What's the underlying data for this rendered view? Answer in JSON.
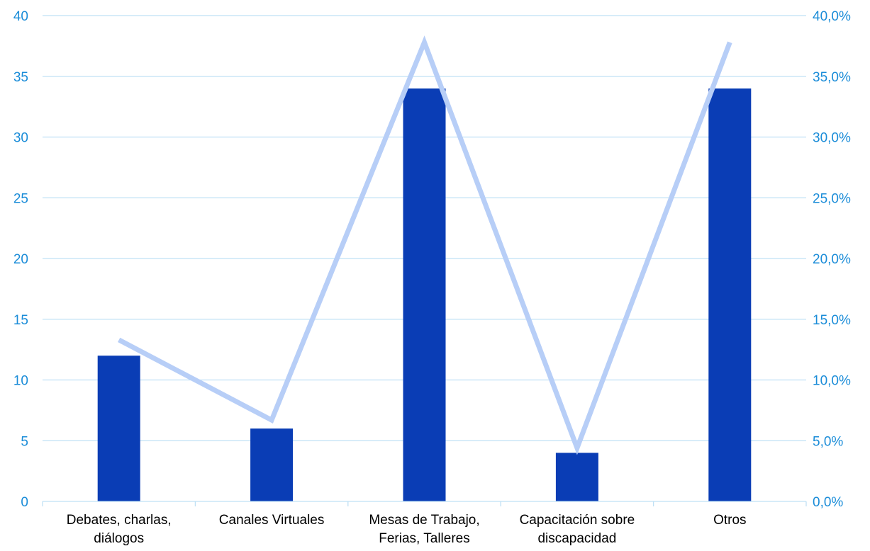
{
  "chart_data": {
    "type": "bar",
    "categories": [
      [
        "Debates, charlas,",
        "diálogos"
      ],
      [
        "Canales Virtuales"
      ],
      [
        "Mesas de Trabajo,",
        "Ferias, Talleres"
      ],
      [
        "Capacitación sobre",
        "discapacidad"
      ],
      [
        "Otros"
      ]
    ],
    "series": [
      {
        "type": "bar",
        "axis": "left",
        "color": "#0a3db5",
        "values": [
          12,
          6,
          34,
          4,
          34
        ]
      },
      {
        "type": "line",
        "axis": "right",
        "color": "#b7cef7",
        "values": [
          13.3,
          6.7,
          37.8,
          4.4,
          37.8
        ]
      }
    ],
    "y_left": {
      "lim": [
        0,
        40
      ],
      "ticks": [
        "0",
        "5",
        "10",
        "15",
        "20",
        "25",
        "30",
        "35",
        "40"
      ]
    },
    "y_right": {
      "lim": [
        0,
        40
      ],
      "ticks": [
        "0,0%",
        "5,0%",
        "10,0%",
        "15,0%",
        "20,0%",
        "25,0%",
        "30,0%",
        "35,0%",
        "40,0%"
      ]
    },
    "grid": true,
    "legend": "none",
    "gridline_color": "#bfe0f5",
    "axis_text_color": "#1a8cd8"
  }
}
